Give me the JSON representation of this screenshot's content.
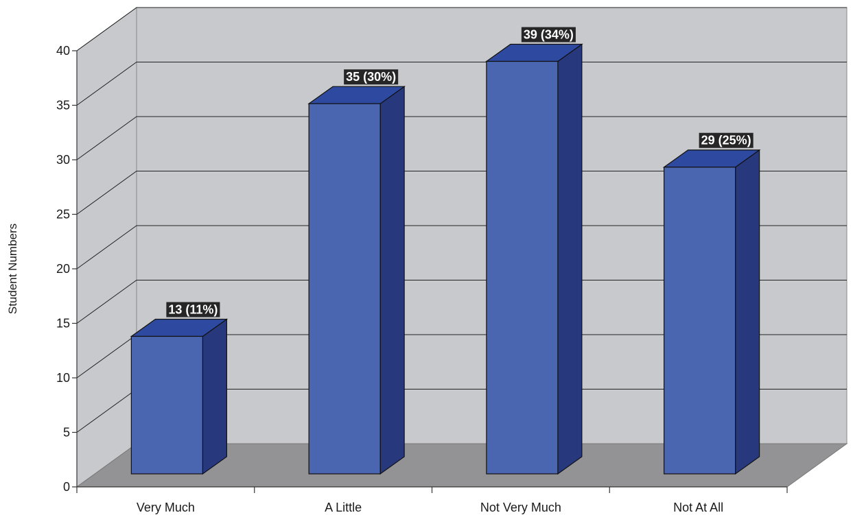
{
  "chart_data": {
    "type": "bar",
    "title": "",
    "xlabel": "",
    "ylabel": "Student Numbers",
    "categories": [
      "Very Much",
      "A Little",
      "Not Very Much",
      "Not At All"
    ],
    "values": [
      13,
      35,
      39,
      29
    ],
    "data_labels": [
      "13 (11%)",
      "35 (30%)",
      "39 (34%)",
      "29 (25%)"
    ],
    "ylim": [
      0,
      40
    ],
    "yticks": [
      "0",
      "5",
      "10",
      "15",
      "20",
      "25",
      "30",
      "35",
      "40"
    ],
    "grid": true,
    "legend": "none",
    "style": "3d",
    "colors": {
      "bar_front": "#4a66b0",
      "bar_side": "#28387c",
      "bar_top": "#2e4aa0",
      "wall": "#c8c9cc",
      "floor": "#939396",
      "label_bg": "#262626"
    }
  }
}
